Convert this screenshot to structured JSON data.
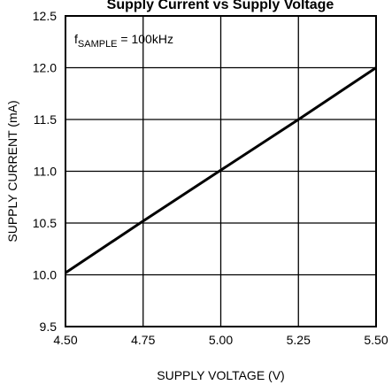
{
  "chart_data": {
    "type": "line",
    "title": "Supply Current vs Supply Voltage",
    "xlabel": "SUPPLY VOLTAGE (V)",
    "ylabel": "SUPPLY CURRENT (mA)",
    "xlim": [
      4.5,
      5.5
    ],
    "ylim": [
      9.5,
      12.5
    ],
    "x_ticks": [
      4.5,
      4.75,
      5.0,
      5.25,
      5.5
    ],
    "x_tick_labels": [
      "4.50",
      "4.75",
      "5.00",
      "5.25",
      "5.50"
    ],
    "y_ticks": [
      9.5,
      10.0,
      10.5,
      11.0,
      11.5,
      12.0,
      12.5
    ],
    "y_tick_labels": [
      "9.5",
      "10.0",
      "10.5",
      "11.0",
      "11.5",
      "12.0",
      "12.5"
    ],
    "grid": true,
    "annotation": {
      "prefix": "f",
      "subscript": "SAMPLE",
      "suffix": " = 100kHz"
    },
    "series": [
      {
        "x": [
          4.5,
          4.75,
          5.0,
          5.25,
          5.5
        ],
        "y": [
          10.02,
          10.52,
          11.01,
          11.5,
          12.0
        ],
        "color": "#000000"
      }
    ]
  }
}
